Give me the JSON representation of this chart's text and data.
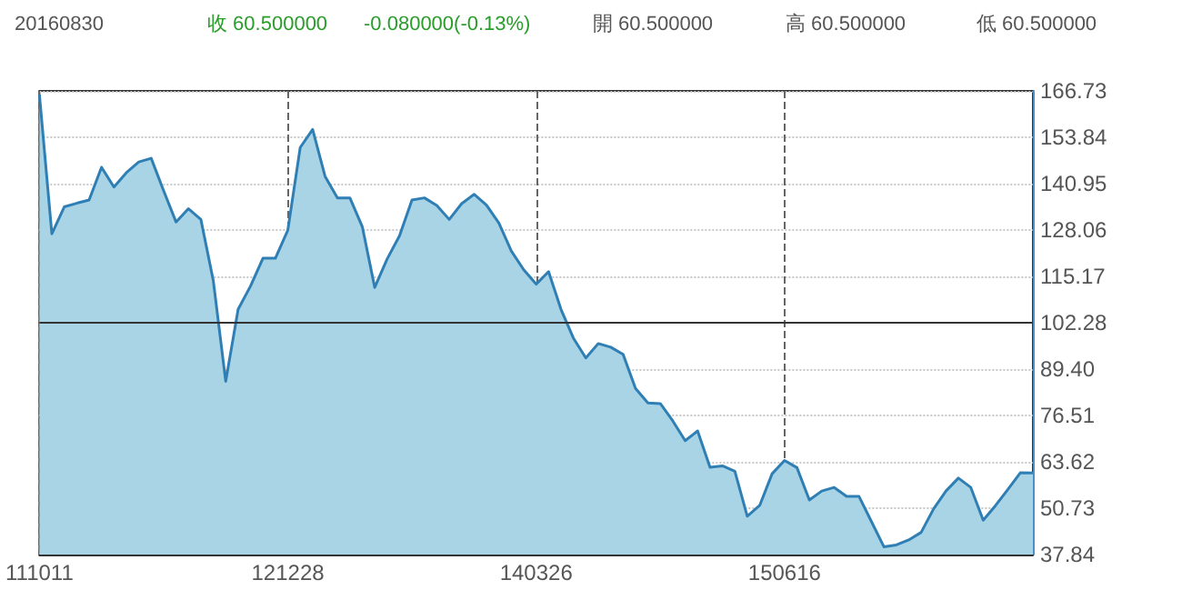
{
  "chart_data": {
    "type": "area",
    "annotations": [
      "20160830",
      "收 60.500000",
      "-0.080000(-0.13%)",
      "開 60.500000",
      "高 60.500000",
      "低 60.500000"
    ],
    "categories": [
      "111011",
      null,
      null,
      null,
      null,
      null,
      null,
      null,
      null,
      null,
      null,
      null,
      null,
      null,
      null,
      null,
      null,
      null,
      null,
      null,
      "121228",
      null,
      null,
      null,
      null,
      null,
      null,
      null,
      null,
      null,
      null,
      null,
      null,
      null,
      null,
      null,
      null,
      null,
      null,
      null,
      "140326",
      null,
      null,
      null,
      null,
      null,
      null,
      null,
      null,
      null,
      null,
      null,
      null,
      null,
      null,
      null,
      null,
      null,
      null,
      null,
      "150616",
      null,
      null,
      null,
      null,
      null,
      null,
      null,
      null,
      null,
      null,
      null,
      null,
      null,
      null,
      null,
      null,
      null,
      null,
      null,
      null
    ],
    "series": [
      {
        "color": "#2f7fb5",
        "values": [
          165.7,
          127,
          134.5,
          135.5,
          136.4,
          145.5,
          140,
          144,
          147,
          148,
          139,
          130.3,
          134,
          131,
          114,
          86,
          106,
          112.5,
          120.2,
          120.2,
          128,
          151,
          156,
          143,
          137,
          137,
          129,
          112.1,
          120,
          126.5,
          136.4,
          137,
          134.9,
          131,
          135.4,
          138,
          135,
          130,
          122.2,
          117,
          113,
          116.5,
          106,
          98,
          92.5,
          96.5,
          95.5,
          93.5,
          84,
          80,
          79.8,
          75,
          69.5,
          72.2,
          62.1,
          62.5,
          61,
          48.5,
          51.5,
          60.3,
          64,
          62,
          53,
          55.5,
          56.5,
          54,
          54,
          47,
          40,
          40.5,
          41.9,
          44,
          50.5,
          55.5,
          59.1,
          56.5,
          47.4,
          51.5,
          56,
          60.6,
          60.5
        ]
      }
    ],
    "ylim": [
      37.84,
      166.73
    ],
    "yticks": [
      37.84,
      50.73,
      63.62,
      76.51,
      {
        "value": 89.4,
        "label": "89.40"
      },
      102.28,
      115.17,
      128.06,
      140.95,
      153.84,
      166.73
    ],
    "ref_lines": [
      {
        "axis": "y",
        "value": 102.28,
        "color": "#333333"
      }
    ],
    "grid": true
  }
}
